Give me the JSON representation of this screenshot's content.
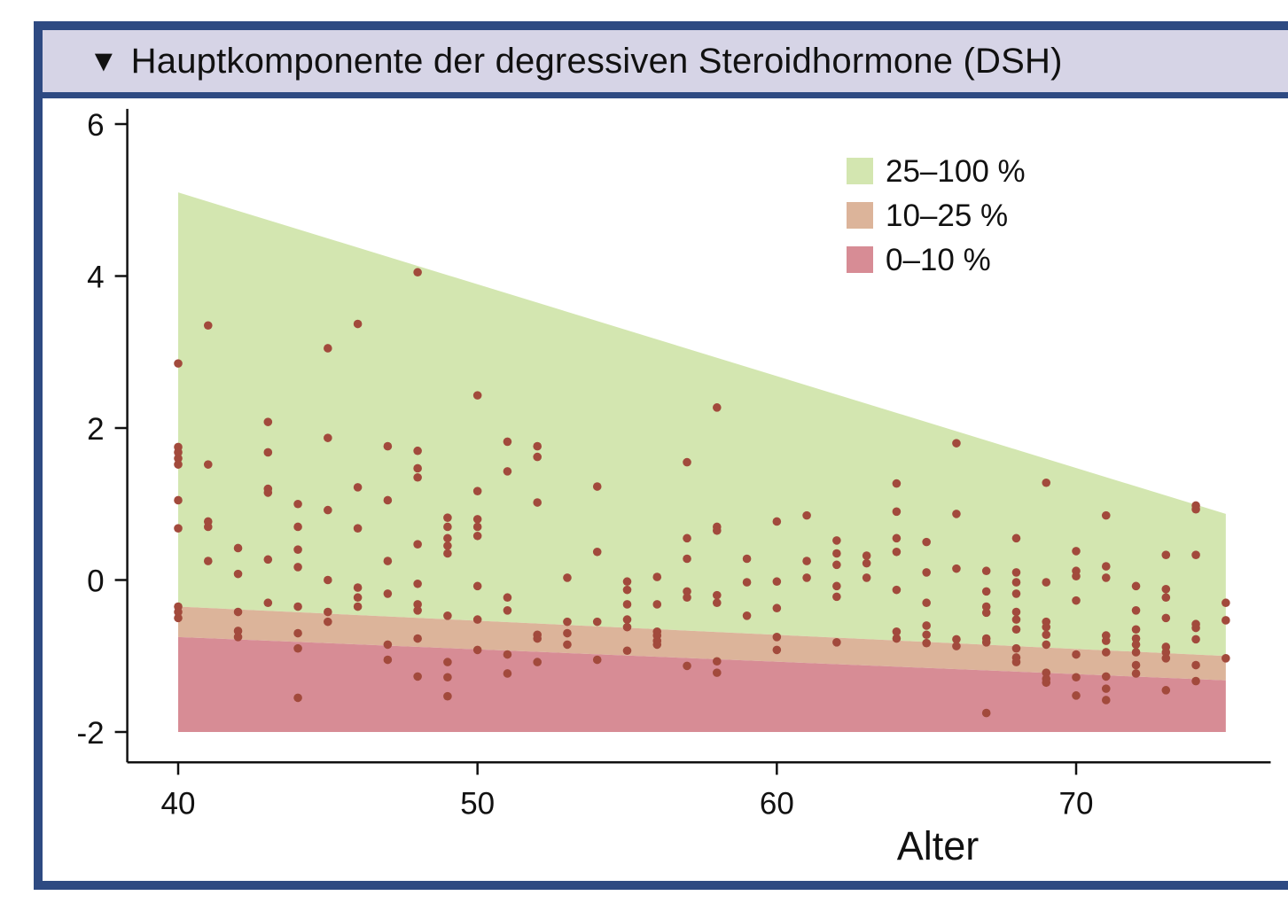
{
  "title": "Hauptkomponente der degressiven Steroidhormone (DSH)",
  "title_icon": "triangle-down-icon",
  "colors": {
    "frame": "#2e4a82",
    "title_bg": "#d6d4e6",
    "band_high": "#d3e6b0",
    "band_mid": "#dcb49a",
    "band_low": "#d78c95",
    "point": "#a24a3c"
  },
  "chart_data": {
    "type": "scatter",
    "title": "Hauptkomponente der degressiven Steroidhormone (DSH)",
    "xlabel": "Alter",
    "ylabel": "",
    "xlim": [
      38.3,
      76.5
    ],
    "ylim": [
      -2.4,
      6.2
    ],
    "xticks": [
      40,
      50,
      60,
      70
    ],
    "yticks": [
      6,
      4,
      2,
      0,
      -2
    ],
    "grid": false,
    "legend_position": "top-right",
    "legend": [
      {
        "label": "25–100 %",
        "color": "#d3e6b0"
      },
      {
        "label": "10–25 %",
        "color": "#dcb49a"
      },
      {
        "label": "0–10 %",
        "color": "#d78c95"
      }
    ],
    "bands": [
      {
        "name": "25–100 %",
        "x": [
          40,
          75
        ],
        "lower": [
          -0.35,
          -1.0
        ],
        "upper": [
          5.1,
          0.87
        ]
      },
      {
        "name": "10–25 %",
        "x": [
          40,
          75
        ],
        "lower": [
          -0.75,
          -1.32
        ],
        "upper": [
          -0.35,
          -1.0
        ]
      },
      {
        "name": "0–10 %",
        "x": [
          40,
          75
        ],
        "lower": [
          -2.0,
          -2.0
        ],
        "upper": [
          -0.75,
          -1.32
        ]
      }
    ],
    "points": [
      [
        40,
        2.85
      ],
      [
        40,
        1.75
      ],
      [
        40,
        1.68
      ],
      [
        40,
        1.6
      ],
      [
        40,
        1.52
      ],
      [
        40,
        1.05
      ],
      [
        40,
        0.68
      ],
      [
        40,
        -0.35
      ],
      [
        40,
        -0.42
      ],
      [
        40,
        -0.5
      ],
      [
        41,
        3.35
      ],
      [
        41,
        1.52
      ],
      [
        41,
        0.77
      ],
      [
        41,
        0.7
      ],
      [
        41,
        0.25
      ],
      [
        42,
        0.42
      ],
      [
        42,
        0.08
      ],
      [
        42,
        -0.42
      ],
      [
        42,
        -0.67
      ],
      [
        42,
        -0.75
      ],
      [
        43,
        2.08
      ],
      [
        43,
        1.68
      ],
      [
        43,
        1.2
      ],
      [
        43,
        1.15
      ],
      [
        43,
        0.27
      ],
      [
        43,
        -0.3
      ],
      [
        44,
        1.0
      ],
      [
        44,
        0.7
      ],
      [
        44,
        0.4
      ],
      [
        44,
        0.17
      ],
      [
        44,
        -0.35
      ],
      [
        44,
        -0.7
      ],
      [
        44,
        -0.9
      ],
      [
        44,
        -1.55
      ],
      [
        45,
        3.05
      ],
      [
        45,
        1.87
      ],
      [
        45,
        0.92
      ],
      [
        45,
        0.0
      ],
      [
        45,
        -0.42
      ],
      [
        45,
        -0.55
      ],
      [
        46,
        3.37
      ],
      [
        46,
        1.22
      ],
      [
        46,
        0.68
      ],
      [
        46,
        -0.1
      ],
      [
        46,
        -0.23
      ],
      [
        46,
        -0.35
      ],
      [
        47,
        1.76
      ],
      [
        47,
        1.05
      ],
      [
        47,
        0.25
      ],
      [
        47,
        -0.18
      ],
      [
        47,
        -0.85
      ],
      [
        47,
        -1.05
      ],
      [
        48,
        4.05
      ],
      [
        48,
        1.7
      ],
      [
        48,
        1.47
      ],
      [
        48,
        1.35
      ],
      [
        48,
        0.47
      ],
      [
        48,
        -0.05
      ],
      [
        48,
        -0.32
      ],
      [
        48,
        -0.4
      ],
      [
        48,
        -0.77
      ],
      [
        48,
        -1.27
      ],
      [
        49,
        0.82
      ],
      [
        49,
        0.7
      ],
      [
        49,
        0.55
      ],
      [
        49,
        0.45
      ],
      [
        49,
        0.35
      ],
      [
        49,
        -0.47
      ],
      [
        49,
        -1.08
      ],
      [
        49,
        -1.28
      ],
      [
        49,
        -1.53
      ],
      [
        50,
        2.43
      ],
      [
        50,
        1.17
      ],
      [
        50,
        0.8
      ],
      [
        50,
        0.7
      ],
      [
        50,
        0.58
      ],
      [
        50,
        -0.08
      ],
      [
        50,
        -0.52
      ],
      [
        50,
        -0.92
      ],
      [
        51,
        1.82
      ],
      [
        51,
        1.43
      ],
      [
        51,
        -0.23
      ],
      [
        51,
        -0.4
      ],
      [
        51,
        -0.98
      ],
      [
        51,
        -1.23
      ],
      [
        52,
        1.76
      ],
      [
        52,
        1.62
      ],
      [
        52,
        1.02
      ],
      [
        52,
        -0.72
      ],
      [
        52,
        -0.77
      ],
      [
        52,
        -1.08
      ],
      [
        53,
        0.03
      ],
      [
        53,
        -0.55
      ],
      [
        53,
        -0.7
      ],
      [
        53,
        -0.85
      ],
      [
        54,
        1.23
      ],
      [
        54,
        0.37
      ],
      [
        54,
        -0.55
      ],
      [
        54,
        -1.05
      ],
      [
        55,
        -0.02
      ],
      [
        55,
        -0.13
      ],
      [
        55,
        -0.32
      ],
      [
        55,
        -0.52
      ],
      [
        55,
        -0.62
      ],
      [
        55,
        -0.93
      ],
      [
        56,
        0.04
      ],
      [
        56,
        -0.32
      ],
      [
        56,
        -0.68
      ],
      [
        56,
        -0.73
      ],
      [
        56,
        -0.8
      ],
      [
        56,
        -0.85
      ],
      [
        57,
        1.55
      ],
      [
        57,
        0.55
      ],
      [
        57,
        0.28
      ],
      [
        57,
        -0.15
      ],
      [
        57,
        -0.23
      ],
      [
        57,
        -1.13
      ],
      [
        58,
        2.27
      ],
      [
        58,
        0.7
      ],
      [
        58,
        0.65
      ],
      [
        58,
        -0.2
      ],
      [
        58,
        -0.3
      ],
      [
        58,
        -1.07
      ],
      [
        58,
        -1.22
      ],
      [
        59,
        0.28
      ],
      [
        59,
        -0.03
      ],
      [
        59,
        -0.47
      ],
      [
        60,
        0.77
      ],
      [
        60,
        -0.02
      ],
      [
        60,
        -0.37
      ],
      [
        60,
        -0.75
      ],
      [
        60,
        -0.92
      ],
      [
        61,
        0.85
      ],
      [
        61,
        0.25
      ],
      [
        61,
        0.03
      ],
      [
        62,
        0.52
      ],
      [
        62,
        0.35
      ],
      [
        62,
        0.2
      ],
      [
        62,
        -0.08
      ],
      [
        62,
        -0.22
      ],
      [
        62,
        -0.82
      ],
      [
        63,
        0.32
      ],
      [
        63,
        0.22
      ],
      [
        63,
        0.03
      ],
      [
        64,
        1.27
      ],
      [
        64,
        0.9
      ],
      [
        64,
        0.55
      ],
      [
        64,
        0.37
      ],
      [
        64,
        -0.13
      ],
      [
        64,
        -0.68
      ],
      [
        64,
        -0.77
      ],
      [
        65,
        0.5
      ],
      [
        65,
        0.1
      ],
      [
        65,
        -0.3
      ],
      [
        65,
        -0.6
      ],
      [
        65,
        -0.72
      ],
      [
        65,
        -0.83
      ],
      [
        66,
        1.8
      ],
      [
        66,
        0.87
      ],
      [
        66,
        0.15
      ],
      [
        66,
        -0.78
      ],
      [
        66,
        -0.87
      ],
      [
        67,
        0.12
      ],
      [
        67,
        -0.15
      ],
      [
        67,
        -0.35
      ],
      [
        67,
        -0.43
      ],
      [
        67,
        -0.77
      ],
      [
        67,
        -0.82
      ],
      [
        67,
        -1.75
      ],
      [
        68,
        0.55
      ],
      [
        68,
        0.1
      ],
      [
        68,
        -0.03
      ],
      [
        68,
        -0.18
      ],
      [
        68,
        -0.42
      ],
      [
        68,
        -0.52
      ],
      [
        68,
        -0.65
      ],
      [
        68,
        -0.9
      ],
      [
        68,
        -1.02
      ],
      [
        68,
        -1.08
      ],
      [
        69,
        1.28
      ],
      [
        69,
        -0.03
      ],
      [
        69,
        -0.55
      ],
      [
        69,
        -0.62
      ],
      [
        69,
        -0.72
      ],
      [
        69,
        -0.85
      ],
      [
        69,
        -1.22
      ],
      [
        69,
        -1.3
      ],
      [
        69,
        -1.35
      ],
      [
        70,
        0.38
      ],
      [
        70,
        0.12
      ],
      [
        70,
        0.05
      ],
      [
        70,
        -0.27
      ],
      [
        70,
        -0.98
      ],
      [
        70,
        -1.28
      ],
      [
        70,
        -1.52
      ],
      [
        71,
        0.85
      ],
      [
        71,
        0.18
      ],
      [
        71,
        0.03
      ],
      [
        71,
        -0.73
      ],
      [
        71,
        -0.8
      ],
      [
        71,
        -0.95
      ],
      [
        71,
        -1.27
      ],
      [
        71,
        -1.43
      ],
      [
        71,
        -1.58
      ],
      [
        72,
        -0.08
      ],
      [
        72,
        -0.4
      ],
      [
        72,
        -0.65
      ],
      [
        72,
        -0.77
      ],
      [
        72,
        -0.85
      ],
      [
        72,
        -0.95
      ],
      [
        72,
        -1.12
      ],
      [
        72,
        -1.23
      ],
      [
        73,
        0.33
      ],
      [
        73,
        -0.12
      ],
      [
        73,
        -0.23
      ],
      [
        73,
        -0.5
      ],
      [
        73,
        -0.88
      ],
      [
        73,
        -0.95
      ],
      [
        73,
        -1.03
      ],
      [
        73,
        -1.45
      ],
      [
        74,
        0.98
      ],
      [
        74,
        0.93
      ],
      [
        74,
        0.33
      ],
      [
        74,
        -0.58
      ],
      [
        74,
        -0.63
      ],
      [
        74,
        -0.78
      ],
      [
        74,
        -1.12
      ],
      [
        74,
        -1.33
      ],
      [
        75,
        -0.3
      ],
      [
        75,
        -0.53
      ],
      [
        75,
        -1.03
      ]
    ]
  }
}
